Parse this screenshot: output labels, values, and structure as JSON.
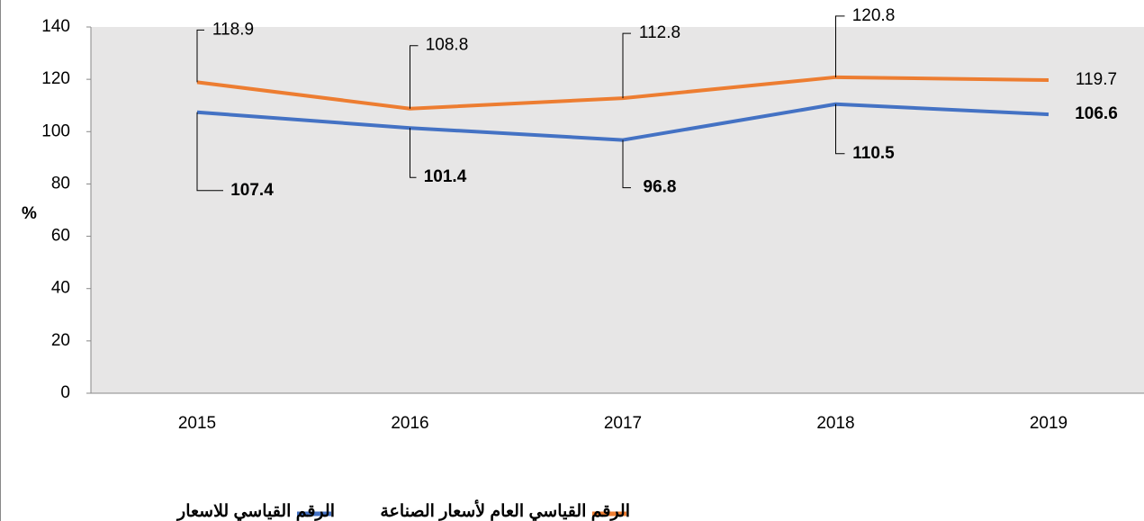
{
  "chart_data": {
    "type": "line",
    "y_label": "%",
    "categories": [
      "2015",
      "2016",
      "2017",
      "2018",
      "2019"
    ],
    "series": [
      {
        "name": "الرقم القياسي للاسعار",
        "color": "#4472c4",
        "values": [
          107.4,
          101.4,
          96.8,
          110.5,
          106.6
        ]
      },
      {
        "name": "الرقم القياسي العام لأسعار الصناعة",
        "color": "#ed7d31",
        "values": [
          118.9,
          108.8,
          112.8,
          120.8,
          119.7
        ]
      }
    ],
    "ylim": [
      0,
      140
    ],
    "yticks": [
      0,
      20,
      40,
      60,
      80,
      100,
      120,
      140
    ]
  }
}
